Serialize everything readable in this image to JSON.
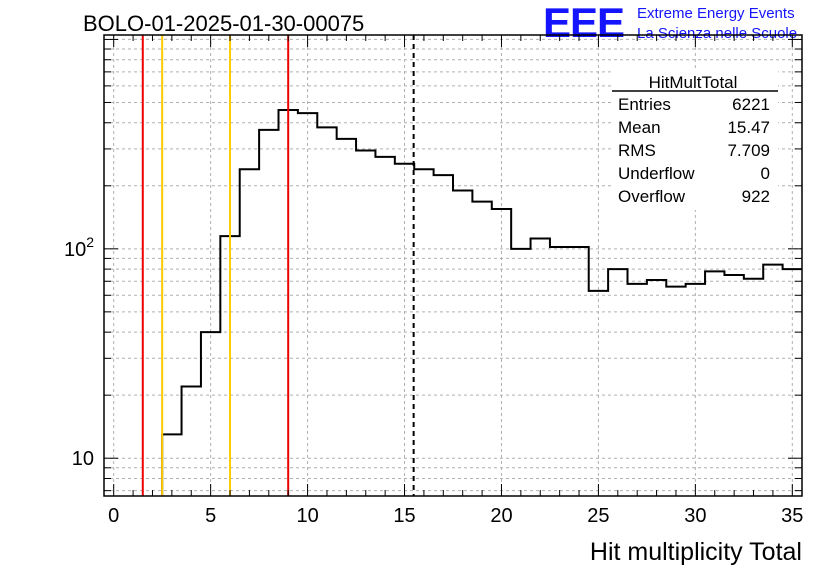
{
  "title": "BOLO-01-2025-01-30-00075",
  "logo": {
    "mark": "EEE",
    "line1": "Extreme Energy Events",
    "line2": "La Scienza nelle Scuole",
    "color": "#1414ff"
  },
  "stats": {
    "name": "HitMultTotal",
    "rows": [
      {
        "label": "Entries",
        "value": "6221"
      },
      {
        "label": "Mean",
        "value": "15.47"
      },
      {
        "label": "RMS",
        "value": "7.709"
      },
      {
        "label": "Underflow",
        "value": "0"
      },
      {
        "label": "Overflow",
        "value": "922"
      }
    ]
  },
  "chart_data": {
    "type": "histogram",
    "xlabel": "Hit multiplicity Total",
    "ylabel": "",
    "xlim": [
      -0.5,
      35.5
    ],
    "ylim": [
      6.6,
      1050
    ],
    "yscale": "log",
    "grid": true,
    "xticks": [
      0,
      5,
      10,
      15,
      20,
      25,
      30,
      35
    ],
    "yticks": [
      {
        "value": 10,
        "label": "10"
      },
      {
        "value": 100,
        "label": "10^2"
      }
    ],
    "bin_edges": [
      1.5,
      2.5,
      3.5,
      4.5,
      5.5,
      6.5,
      7.5,
      8.5,
      9.5,
      10.5,
      11.5,
      12.5,
      13.5,
      14.5,
      15.5,
      16.5,
      17.5,
      18.5,
      19.5,
      20.5,
      21.5,
      22.5,
      23.5,
      24.5,
      25.5,
      26.5,
      27.5,
      28.5,
      29.5,
      30.5,
      31.5,
      32.5,
      33.5,
      34.5,
      35.5
    ],
    "counts": [
      0,
      13,
      22,
      40,
      115,
      240,
      370,
      460,
      445,
      380,
      335,
      295,
      275,
      255,
      240,
      225,
      190,
      168,
      155,
      100,
      112,
      102,
      102,
      63,
      80,
      68,
      71,
      66,
      68,
      78,
      75,
      72,
      84,
      80
    ],
    "histogram_color": "#000000",
    "vlines": [
      {
        "x": 1.5,
        "color": "#ee0000",
        "style": "solid"
      },
      {
        "x": 2.5,
        "color": "#ffcc00",
        "style": "solid"
      },
      {
        "x": 6.0,
        "color": "#ffcc00",
        "style": "solid"
      },
      {
        "x": 9.0,
        "color": "#ee0000",
        "style": "solid"
      },
      {
        "x": 15.47,
        "color": "#000000",
        "style": "dashed"
      }
    ]
  }
}
